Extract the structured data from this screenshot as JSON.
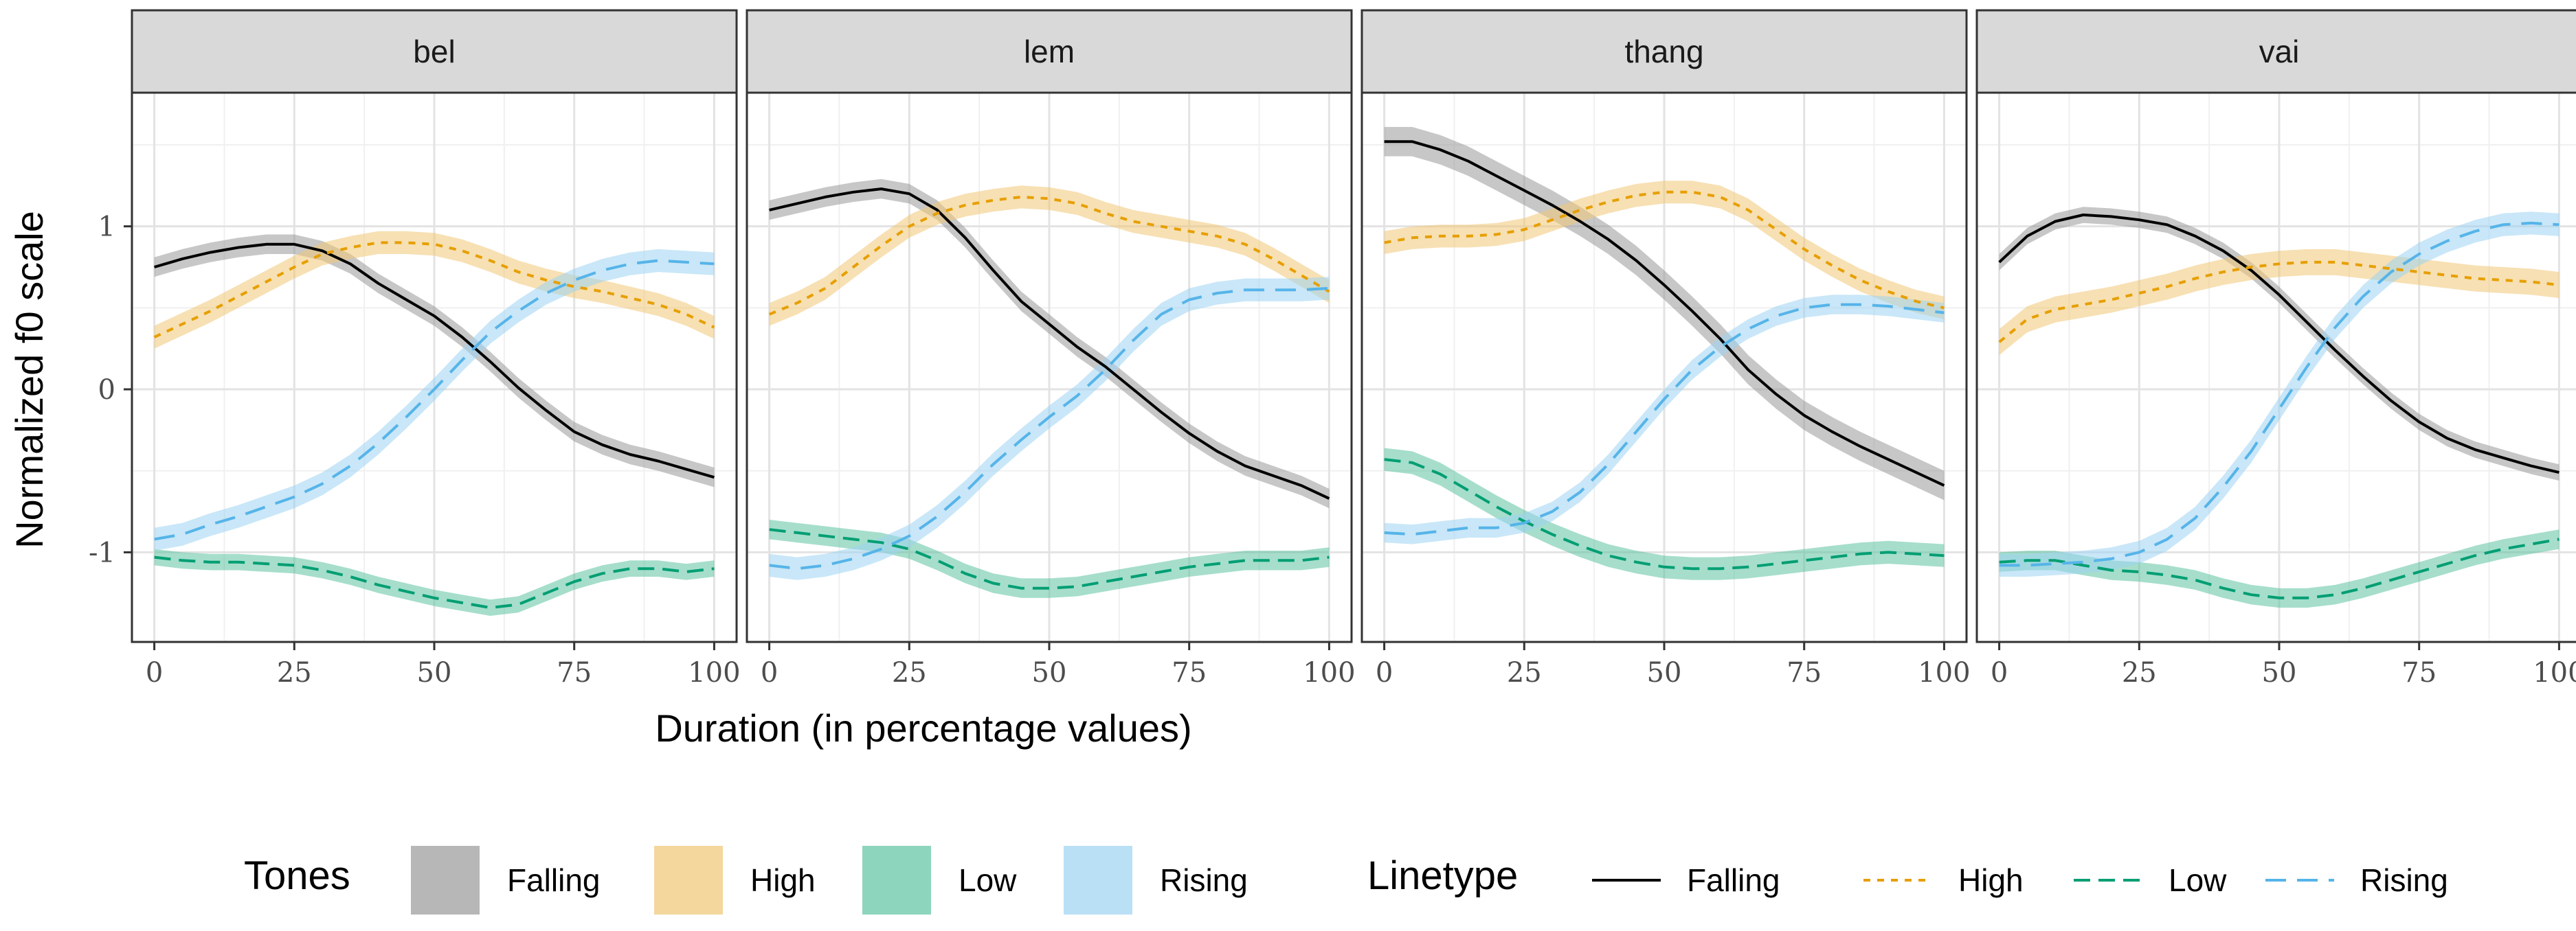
{
  "chart_data": {
    "type": "line",
    "title": "",
    "xlabel": "Duration (in percentage values)",
    "ylabel": "Normalized f0 scale",
    "xlim": [
      -4,
      104
    ],
    "ylim": [
      -1.55,
      1.82
    ],
    "xticks": [
      0,
      25,
      50,
      75,
      100
    ],
    "yticks": [
      -1,
      0,
      1
    ],
    "xtick_labels": [
      "0",
      "25",
      "50",
      "75",
      "100"
    ],
    "ytick_labels": [
      "-1",
      "0",
      "1"
    ],
    "grid": true,
    "legend": {
      "position": "bottom",
      "fill_title": "Tones",
      "line_title": "Linetype",
      "entries": [
        "Falling",
        "High",
        "Low",
        "Rising"
      ]
    },
    "styles": {
      "Falling": {
        "color": "#000000",
        "fill": "#999999",
        "dash": ""
      },
      "High": {
        "color": "#E69F00",
        "fill": "#F0C674",
        "dash": "10,10"
      },
      "Low": {
        "color": "#009E73",
        "fill": "#5CC3A0",
        "dash": "24,12"
      },
      "Rising": {
        "color": "#56B4E9",
        "fill": "#9CD3F2",
        "dash": "30,16"
      }
    },
    "x": [
      0,
      5,
      10,
      15,
      20,
      25,
      30,
      35,
      40,
      45,
      50,
      55,
      60,
      65,
      70,
      75,
      80,
      85,
      90,
      95,
      100
    ],
    "panels": [
      {
        "name": "bel",
        "series": [
          {
            "name": "Falling",
            "band": 0.06,
            "values": [
              0.75,
              0.8,
              0.84,
              0.87,
              0.89,
              0.89,
              0.85,
              0.77,
              0.65,
              0.55,
              0.45,
              0.32,
              0.17,
              0.01,
              -0.13,
              -0.26,
              -0.34,
              -0.4,
              -0.44,
              -0.49,
              -0.54
            ]
          },
          {
            "name": "High",
            "band": 0.07,
            "values": [
              0.32,
              0.4,
              0.48,
              0.57,
              0.66,
              0.75,
              0.83,
              0.87,
              0.9,
              0.9,
              0.89,
              0.85,
              0.79,
              0.72,
              0.67,
              0.63,
              0.6,
              0.56,
              0.52,
              0.46,
              0.38
            ]
          },
          {
            "name": "Low",
            "band": 0.05,
            "values": [
              -1.03,
              -1.05,
              -1.06,
              -1.06,
              -1.07,
              -1.08,
              -1.11,
              -1.15,
              -1.2,
              -1.24,
              -1.28,
              -1.31,
              -1.34,
              -1.32,
              -1.25,
              -1.18,
              -1.13,
              -1.1,
              -1.1,
              -1.12,
              -1.1
            ]
          },
          {
            "name": "Rising",
            "band": 0.07,
            "values": [
              -0.92,
              -0.89,
              -0.83,
              -0.78,
              -0.72,
              -0.66,
              -0.58,
              -0.47,
              -0.33,
              -0.17,
              0.0,
              0.18,
              0.35,
              0.48,
              0.59,
              0.67,
              0.73,
              0.77,
              0.79,
              0.78,
              0.77
            ]
          }
        ]
      },
      {
        "name": "lem",
        "series": [
          {
            "name": "Falling",
            "band": 0.06,
            "values": [
              1.1,
              1.14,
              1.18,
              1.21,
              1.23,
              1.2,
              1.1,
              0.93,
              0.73,
              0.54,
              0.4,
              0.26,
              0.14,
              0.0,
              -0.14,
              -0.27,
              -0.38,
              -0.47,
              -0.53,
              -0.59,
              -0.67
            ]
          },
          {
            "name": "High",
            "band": 0.07,
            "values": [
              0.46,
              0.53,
              0.62,
              0.75,
              0.88,
              1.0,
              1.08,
              1.13,
              1.16,
              1.18,
              1.17,
              1.14,
              1.08,
              1.03,
              1.0,
              0.97,
              0.94,
              0.89,
              0.8,
              0.7,
              0.6
            ]
          },
          {
            "name": "Low",
            "band": 0.06,
            "values": [
              -0.86,
              -0.88,
              -0.9,
              -0.92,
              -0.94,
              -0.98,
              -1.05,
              -1.13,
              -1.19,
              -1.22,
              -1.22,
              -1.21,
              -1.18,
              -1.15,
              -1.12,
              -1.09,
              -1.07,
              -1.05,
              -1.05,
              -1.05,
              -1.03
            ]
          },
          {
            "name": "Rising",
            "band": 0.07,
            "values": [
              -1.08,
              -1.1,
              -1.08,
              -1.04,
              -0.98,
              -0.9,
              -0.78,
              -0.63,
              -0.46,
              -0.31,
              -0.17,
              -0.04,
              0.12,
              0.3,
              0.46,
              0.55,
              0.59,
              0.61,
              0.61,
              0.61,
              0.62
            ]
          }
        ]
      },
      {
        "name": "thang",
        "series": [
          {
            "name": "Falling",
            "band": 0.09,
            "values": [
              1.52,
              1.52,
              1.47,
              1.4,
              1.31,
              1.22,
              1.13,
              1.03,
              0.92,
              0.79,
              0.64,
              0.48,
              0.31,
              0.12,
              -0.03,
              -0.16,
              -0.26,
              -0.35,
              -0.43,
              -0.51,
              -0.59
            ]
          },
          {
            "name": "High",
            "band": 0.07,
            "values": [
              0.9,
              0.93,
              0.94,
              0.94,
              0.95,
              0.98,
              1.04,
              1.1,
              1.15,
              1.19,
              1.21,
              1.21,
              1.18,
              1.1,
              0.98,
              0.86,
              0.76,
              0.67,
              0.6,
              0.54,
              0.5
            ]
          },
          {
            "name": "Low",
            "band": 0.07,
            "values": [
              -0.43,
              -0.45,
              -0.52,
              -0.62,
              -0.72,
              -0.81,
              -0.89,
              -0.96,
              -1.02,
              -1.06,
              -1.09,
              -1.1,
              -1.1,
              -1.09,
              -1.07,
              -1.05,
              -1.03,
              -1.01,
              -1.0,
              -1.01,
              -1.02
            ]
          },
          {
            "name": "Rising",
            "band": 0.06,
            "values": [
              -0.88,
              -0.89,
              -0.87,
              -0.85,
              -0.85,
              -0.82,
              -0.75,
              -0.63,
              -0.46,
              -0.26,
              -0.06,
              0.12,
              0.26,
              0.37,
              0.45,
              0.5,
              0.52,
              0.52,
              0.51,
              0.49,
              0.47
            ]
          }
        ]
      },
      {
        "name": "vai",
        "series": [
          {
            "name": "Falling",
            "band": 0.05,
            "values": [
              0.78,
              0.94,
              1.03,
              1.07,
              1.06,
              1.04,
              1.01,
              0.94,
              0.85,
              0.73,
              0.58,
              0.41,
              0.24,
              0.08,
              -0.07,
              -0.2,
              -0.3,
              -0.37,
              -0.42,
              -0.47,
              -0.51
            ]
          },
          {
            "name": "High",
            "band": 0.08,
            "values": [
              0.29,
              0.43,
              0.49,
              0.52,
              0.55,
              0.59,
              0.63,
              0.68,
              0.72,
              0.75,
              0.77,
              0.78,
              0.78,
              0.76,
              0.74,
              0.72,
              0.7,
              0.68,
              0.67,
              0.66,
              0.64
            ]
          },
          {
            "name": "Low",
            "band": 0.06,
            "values": [
              -1.06,
              -1.05,
              -1.05,
              -1.08,
              -1.11,
              -1.12,
              -1.14,
              -1.17,
              -1.22,
              -1.26,
              -1.28,
              -1.28,
              -1.26,
              -1.22,
              -1.17,
              -1.12,
              -1.07,
              -1.02,
              -0.98,
              -0.95,
              -0.92
            ]
          },
          {
            "name": "Rising",
            "band": 0.07,
            "values": [
              -1.08,
              -1.08,
              -1.07,
              -1.06,
              -1.04,
              -1.0,
              -0.92,
              -0.79,
              -0.6,
              -0.38,
              -0.12,
              0.14,
              0.38,
              0.57,
              0.72,
              0.83,
              0.91,
              0.97,
              1.01,
              1.02,
              1.01
            ]
          }
        ]
      }
    ]
  }
}
